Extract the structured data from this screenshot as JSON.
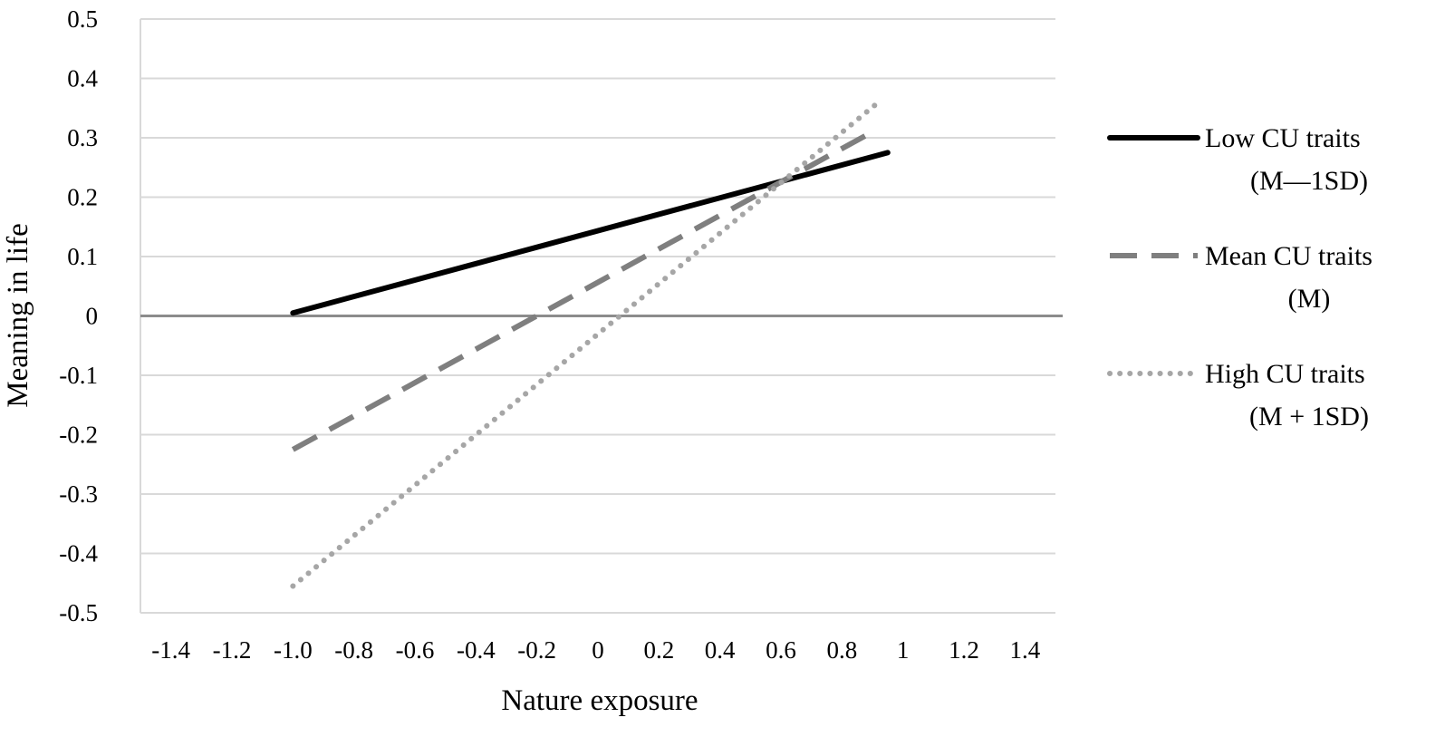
{
  "chart_data": {
    "type": "line",
    "xlabel": "Nature exposure",
    "ylabel": "Meaning in life",
    "xlim": [
      -1.5,
      1.5
    ],
    "ylim": [
      -0.5,
      0.5
    ],
    "x_ticks": [
      -1.4,
      -1.2,
      -1.0,
      -0.8,
      -0.6,
      -0.4,
      -0.2,
      0,
      0.2,
      0.4,
      0.6,
      0.8,
      1,
      1.2,
      1.4
    ],
    "x_tick_labels": [
      "-1.4",
      "-1.2",
      "-1.0",
      "-0.8",
      "-0.6",
      "-0.4",
      "-0.2",
      "0",
      "0.2",
      "0.4",
      "0.6",
      "0.8",
      "1",
      "1.2",
      "1.4"
    ],
    "y_ticks": [
      0.5,
      0.4,
      0.3,
      0.2,
      0.1,
      0,
      -0.1,
      -0.2,
      -0.3,
      -0.4,
      -0.5
    ],
    "y_tick_labels": [
      "0.5",
      "0.4",
      "0.3",
      "0.2",
      "0.1",
      "0",
      "-0.1",
      "-0.2",
      "-0.3",
      "-0.4",
      "-0.5"
    ],
    "grid": true,
    "legend_position": "right",
    "series": [
      {
        "name": "Low CU traits",
        "name_line2": "(M—1SD)",
        "x": [
          -1.0,
          0.95
        ],
        "y": [
          0.005,
          0.275
        ],
        "color": "#000000",
        "style": "solid"
      },
      {
        "name": "Mean CU traits",
        "name_line2": "(M)",
        "x": [
          -1.0,
          0.9
        ],
        "y": [
          -0.225,
          0.31
        ],
        "color": "#7f7f7f",
        "style": "dashed"
      },
      {
        "name": "High CU traits",
        "name_line2": "(M + 1SD)",
        "x": [
          -1.0,
          0.92
        ],
        "y": [
          -0.455,
          0.36
        ],
        "color": "#a6a6a6",
        "style": "dotted"
      }
    ]
  }
}
